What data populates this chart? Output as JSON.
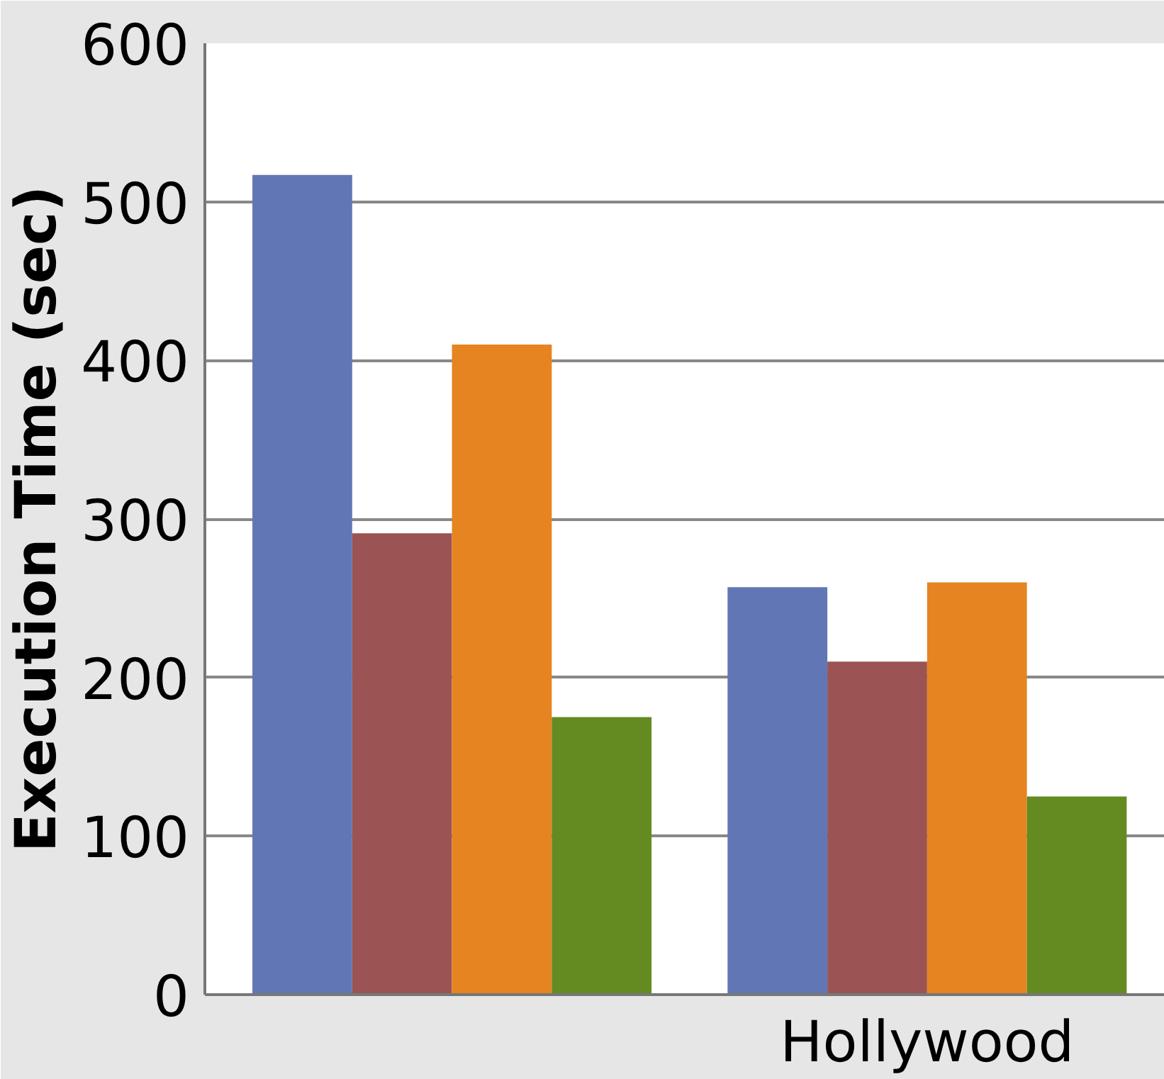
{
  "chart_data": {
    "type": "bar",
    "ylabel": "Execution Time (sec)",
    "categories": [
      null,
      "Hollywood"
    ],
    "series": [
      {
        "color": "#6177b5",
        "values": [
          517,
          257
        ]
      },
      {
        "color": "#9c5353",
        "values": [
          291,
          210
        ]
      },
      {
        "color": "#e58420",
        "values": [
          410,
          260
        ]
      },
      {
        "color": "#648a22",
        "values": [
          175,
          125
        ]
      }
    ],
    "ylim": [
      0,
      600
    ],
    "yticks": [
      0,
      100,
      200,
      300,
      400,
      500,
      600
    ],
    "grid": "y"
  }
}
